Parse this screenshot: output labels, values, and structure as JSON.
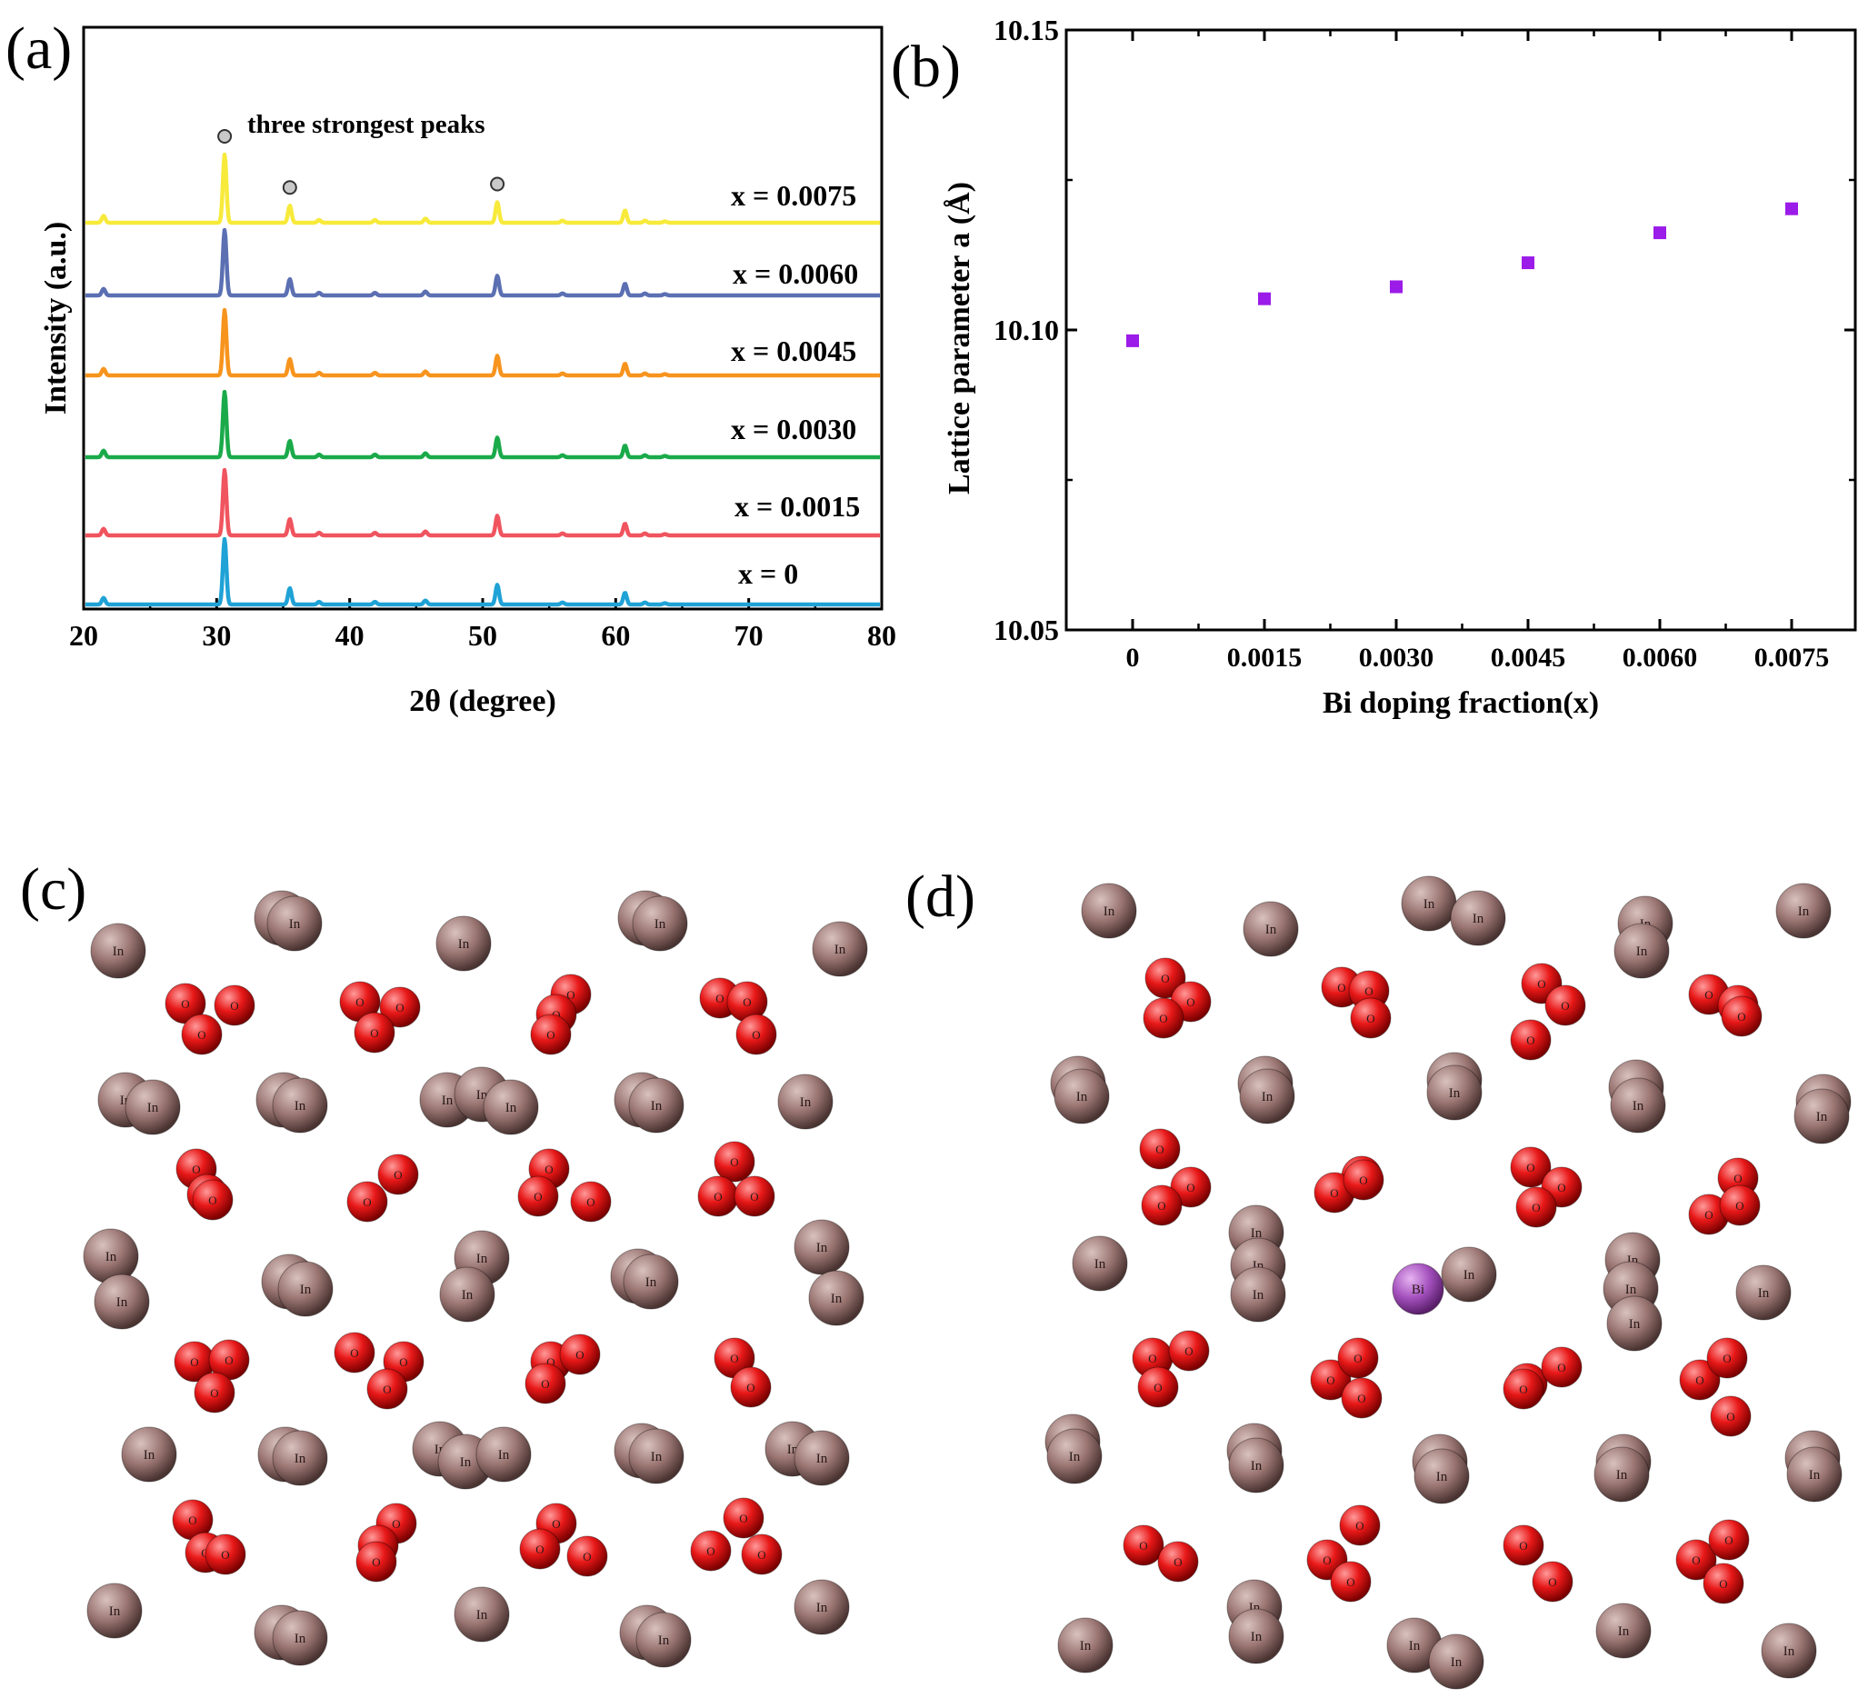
{
  "panels": {
    "a": "(a)",
    "b": "(b)",
    "c": "(c)",
    "d": "(d)"
  },
  "chart_data": [
    {
      "type": "line",
      "title": "",
      "xlabel": "2θ (degree)",
      "ylabel": "Intensity (a.u.)",
      "xlim": [
        20,
        80
      ],
      "xticks": [
        20,
        30,
        40,
        50,
        60,
        70,
        80
      ],
      "annotation": "three strongest peaks",
      "marked_peaks_2theta": [
        30.6,
        35.5,
        51.1
      ],
      "peaks": [
        {
          "x": 21.5,
          "h": 0.1
        },
        {
          "x": 30.6,
          "h": 1.0
        },
        {
          "x": 35.5,
          "h": 0.25
        },
        {
          "x": 37.7,
          "h": 0.04
        },
        {
          "x": 41.9,
          "h": 0.04
        },
        {
          "x": 45.7,
          "h": 0.06
        },
        {
          "x": 51.1,
          "h": 0.3
        },
        {
          "x": 56.0,
          "h": 0.03
        },
        {
          "x": 60.7,
          "h": 0.18
        },
        {
          "x": 62.2,
          "h": 0.03
        },
        {
          "x": 63.7,
          "h": 0.02
        }
      ],
      "series": [
        {
          "name": "x = 0",
          "color": "#1fa2d6"
        },
        {
          "name": "x = 0.0015",
          "color": "#f0545e"
        },
        {
          "name": "x = 0.0030",
          "color": "#1aaa4a"
        },
        {
          "name": "x = 0.0045",
          "color": "#f7941d"
        },
        {
          "name": "x = 0.0060",
          "color": "#5b6fb2"
        },
        {
          "name": "x = 0.0075",
          "color": "#f7ea3b"
        }
      ]
    },
    {
      "type": "scatter",
      "title": "",
      "xlabel": "Bi doping fraction(x)",
      "ylabel": "Lattice parameter a (Å)",
      "categories": [
        "0",
        "0.0015",
        "0.0030",
        "0.0045",
        "0.0060",
        "0.0075"
      ],
      "values": [
        10.0982,
        10.1052,
        10.1072,
        10.1112,
        10.1162,
        10.1202
      ],
      "ylim": [
        10.05,
        10.15
      ],
      "yticks": [
        "10.05",
        "10.10",
        "10.15"
      ],
      "marker_color": "#9b1be8"
    }
  ],
  "lattice_c": {
    "in_label": "In",
    "o_label": "O",
    "in_color": "#a6827f",
    "o_color": "#e81b1b"
  },
  "lattice_d": {
    "in_label": "In",
    "o_label": "O",
    "bi_label": "Bi",
    "in_color": "#a6827f",
    "o_color": "#e81b1b",
    "bi_color": "#b35cc6"
  }
}
